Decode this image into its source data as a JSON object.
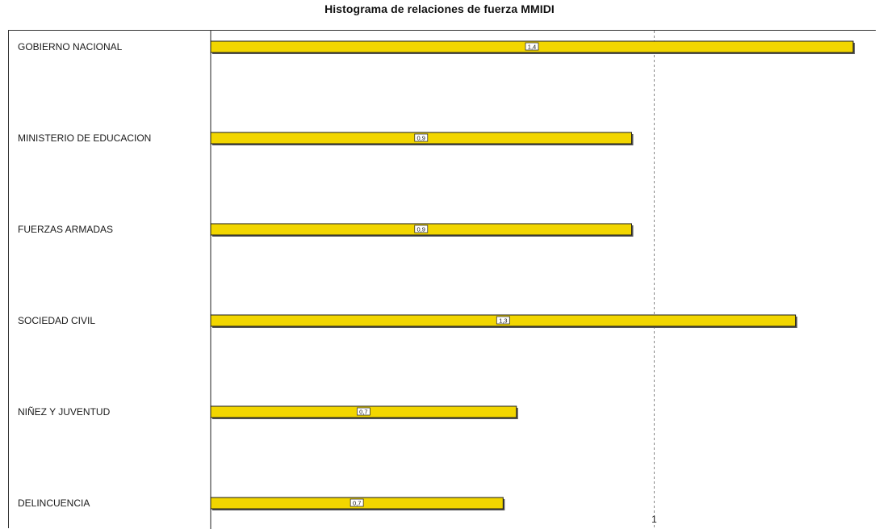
{
  "chart_data": {
    "type": "bar",
    "orientation": "horizontal",
    "title": "Histograma de relaciones de fuerza MMIDI",
    "categories": [
      "GOBIERNO NACIONAL",
      "MINISTERIO DE EDUCACION",
      "FUERZAS ARMADAS",
      "SOCIEDAD CIVIL",
      "NIÑEZ Y JUVENTUD",
      "DELINCUENCIA"
    ],
    "values": [
      1.45,
      0.95,
      0.95,
      1.32,
      0.69,
      0.66
    ],
    "value_labels": [
      "1,4",
      "0,9",
      "0,9",
      "1,3",
      "0,7",
      "0,7"
    ],
    "xlim": [
      0,
      1.45
    ],
    "reference_line": {
      "x": 1,
      "label": "1",
      "style": "dashed"
    },
    "xlabel": "",
    "ylabel": "",
    "grid": false,
    "colors": {
      "bar": "#f2d600",
      "bar_border": "#1a1a1a",
      "shadow": "#555555"
    }
  }
}
